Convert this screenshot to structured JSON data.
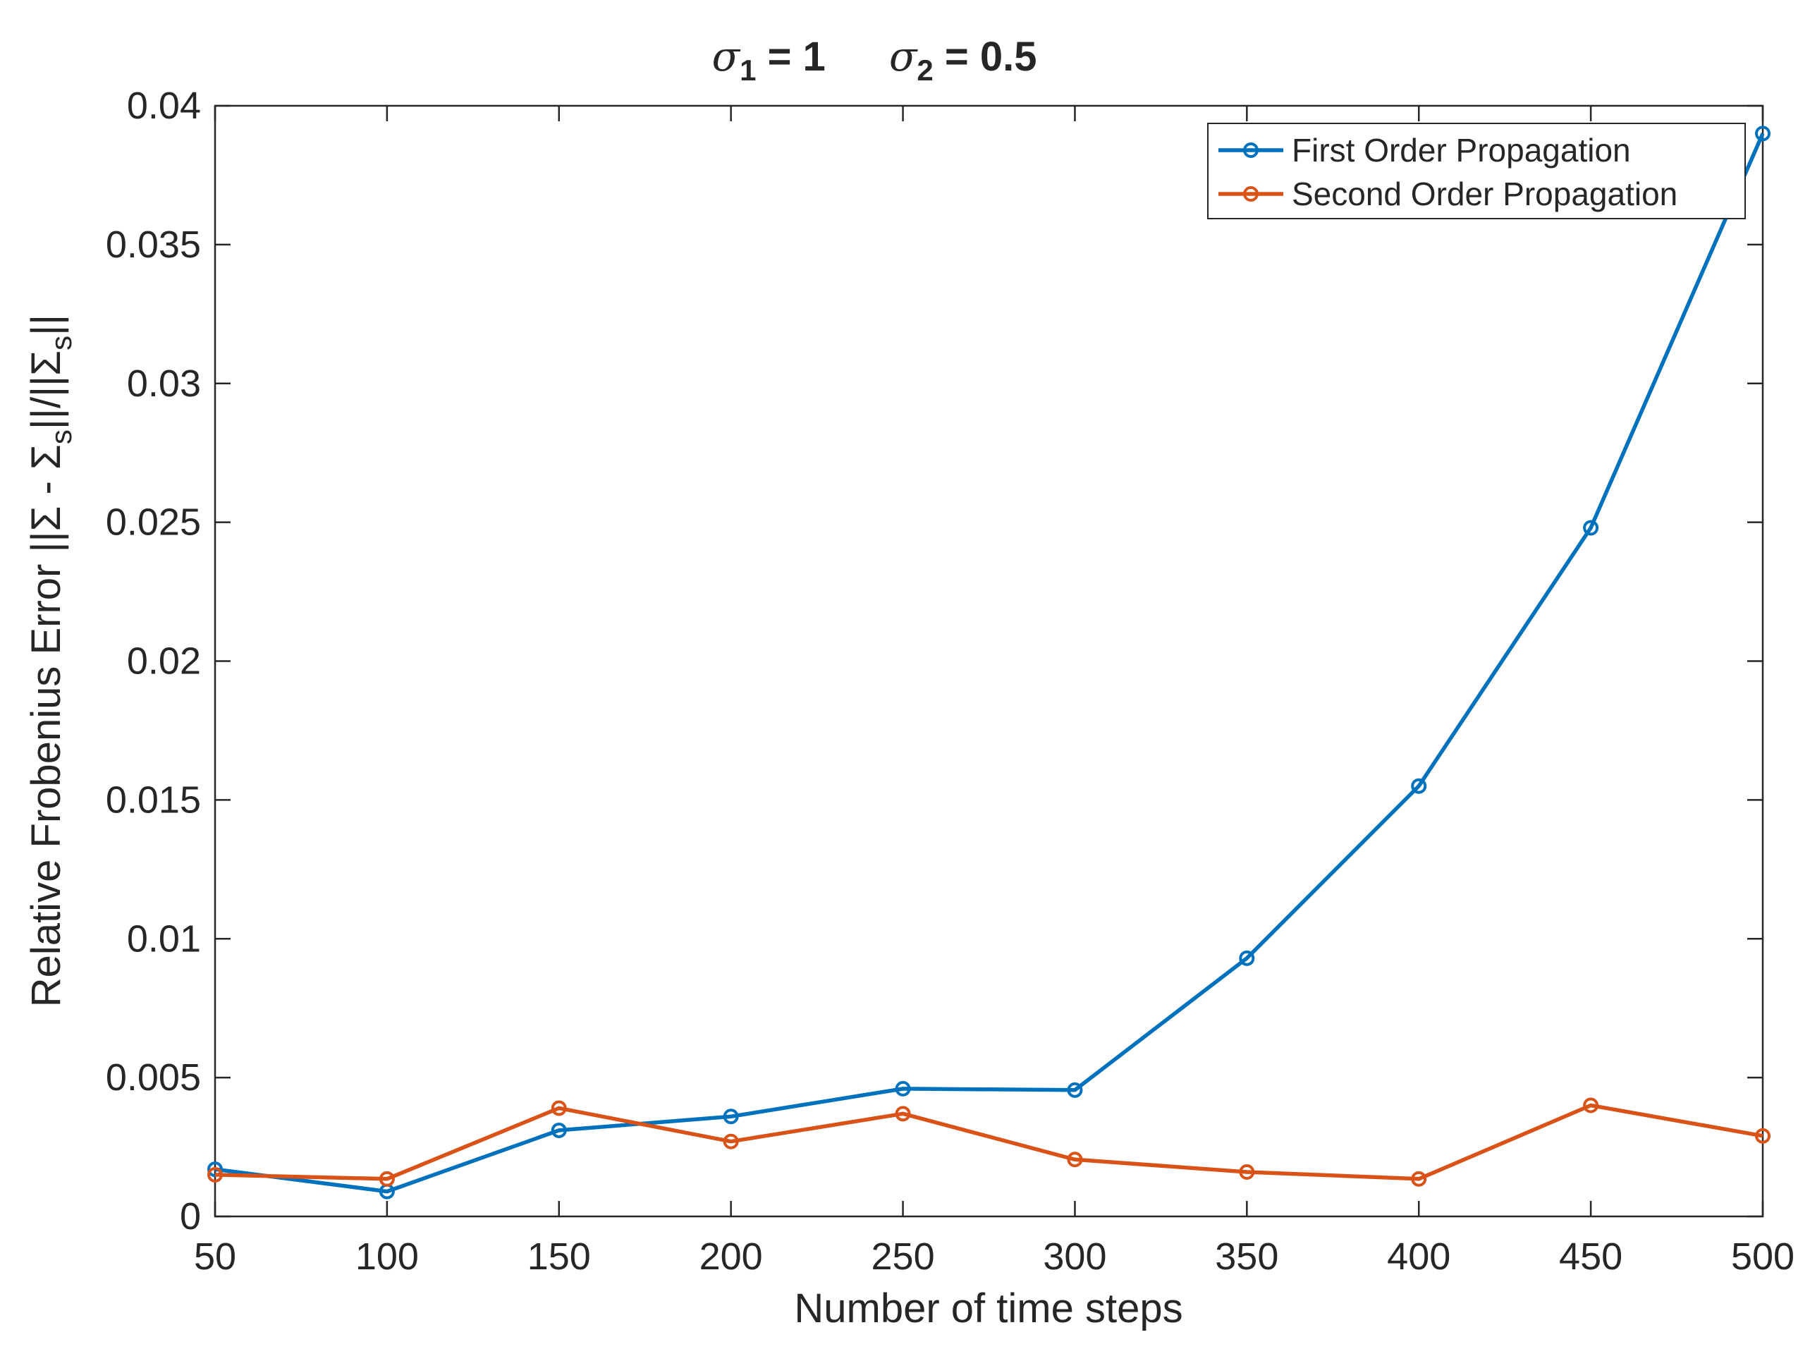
{
  "chart_data": {
    "type": "line",
    "title": {
      "part1_symbol": "σ",
      "part1_sub": "1",
      "part1_rest": " = 1",
      "part2_symbol": "σ",
      "part2_sub": "2",
      "part2_rest": " = 0.5"
    },
    "xlabel": "Number of time steps",
    "ylabel": {
      "main": "Relative Frobenius Error  ||Σ - Σ",
      "sub1": "s",
      "mid": "||/||Σ",
      "sub2": "s",
      "end": "||"
    },
    "x": [
      50,
      100,
      150,
      200,
      250,
      300,
      350,
      400,
      450,
      500
    ],
    "xlim": [
      50,
      500
    ],
    "ylim": [
      0,
      0.04
    ],
    "xticks": [
      "50",
      "100",
      "150",
      "200",
      "250",
      "300",
      "350",
      "400",
      "450",
      "500"
    ],
    "yticks": [
      "0",
      "0.005",
      "0.01",
      "0.015",
      "0.02",
      "0.025",
      "0.03",
      "0.035",
      "0.04"
    ],
    "grid": false,
    "legend_position": "top-right",
    "series": [
      {
        "name": "First Order Propagation",
        "color": "#0072BD",
        "marker": "circle",
        "values": [
          0.0017,
          0.0009,
          0.0031,
          0.0036,
          0.0046,
          0.00455,
          0.0093,
          0.0155,
          0.0248,
          0.039
        ]
      },
      {
        "name": "Second Order Propagation",
        "color": "#D95319",
        "marker": "circle",
        "values": [
          0.0015,
          0.00135,
          0.0039,
          0.0027,
          0.0037,
          0.00205,
          0.0016,
          0.00135,
          0.004,
          0.0029
        ]
      }
    ]
  }
}
